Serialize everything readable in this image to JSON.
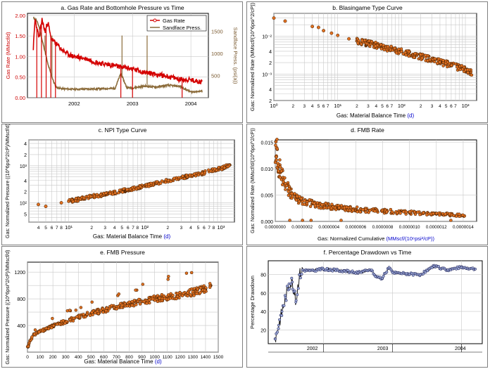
{
  "colors": {
    "gas_rate": "#d40000",
    "sandface": "#8b6b3a",
    "points_fill": "#e07020",
    "points_stroke": "#3a1a00",
    "pct_line": "#1a1a1a",
    "pct_fill": "#9aa8d8",
    "blue_label": "#0000cc",
    "grid": "#c8c8c8"
  },
  "chart_data": [
    {
      "id": "a",
      "type": "line",
      "title": "a. Gas Rate and Bottomhole Pressure vs Time",
      "ylabel": "Gas Rate (MMscf/d)",
      "ylabel_units": "(MMscf/d)",
      "y2label": "Sandface Press. (psi(a))",
      "yticks": [
        "0.00",
        "0.50",
        "1.00",
        "1.50",
        "2.00"
      ],
      "y2ticks": [
        "500",
        "1000",
        "1500"
      ],
      "xticks": [
        "2002",
        "2003",
        "2004"
      ],
      "ylim": [
        0,
        2.05
      ],
      "y2lim": [
        0,
        1900
      ],
      "xlim": [
        2001.2,
        2004.3
      ],
      "legend": [
        "Gas Rate",
        "Sandface Press."
      ],
      "legend_position": "top-right",
      "series": [
        {
          "name": "Gas Rate",
          "x": [
            2001.3,
            2001.33,
            2001.36,
            2001.4,
            2001.45,
            2001.5,
            2001.55,
            2001.6,
            2001.7,
            2001.8,
            2001.9,
            2002.0,
            2002.2,
            2002.4,
            2002.6,
            2002.8,
            2003.0,
            2003.2,
            2003.4,
            2003.6,
            2003.8,
            2004.0,
            2004.2
          ],
          "values": [
            1.2,
            1.9,
            1.7,
            1.45,
            1.9,
            1.6,
            1.85,
            1.45,
            1.3,
            1.15,
            1.05,
            1.0,
            0.95,
            0.85,
            0.8,
            0.75,
            0.7,
            0.62,
            0.57,
            0.52,
            0.45,
            0.43,
            0.38
          ]
        },
        {
          "name": "Sandface Press.",
          "x": [
            2001.3,
            2001.35,
            2001.4,
            2001.45,
            2001.5,
            2001.55,
            2001.6,
            2001.65,
            2001.7,
            2001.8,
            2002.0,
            2002.4,
            2002.7,
            2002.8,
            2002.9,
            2003.0,
            2003.2,
            2003.4,
            2003.6,
            2003.8,
            2004.0,
            2004.2
          ],
          "values": [
            1800,
            1750,
            1600,
            1300,
            1050,
            750,
            550,
            350,
            230,
            200,
            190,
            200,
            210,
            550,
            230,
            220,
            260,
            240,
            280,
            260,
            130,
            150
          ]
        }
      ]
    },
    {
      "id": "b",
      "type": "scatter",
      "title": "b. Blasingame Type Curve",
      "ylabel": "Gas: Normalized Rate (MMscf/(10^6psi^2/cP))",
      "xlabel": "Gas: Material Balance Time (d)",
      "xlabel_main": "Gas: Material Balance Time",
      "xlabel_units": "(d)",
      "xscale": "log",
      "yscale": "log",
      "xlim": [
        1,
        1500
      ],
      "ylim": [
        0.0002,
        0.04
      ],
      "x_major_ticks": [
        "10⁰",
        "10¹",
        "10²",
        "10³"
      ],
      "x_minor_ticks": [
        "2",
        "3",
        "4",
        "5",
        "6",
        "7",
        "2",
        "3",
        "4",
        "5",
        "6",
        "7",
        "2",
        "3",
        "4",
        "5",
        "6",
        "7",
        "2"
      ],
      "y_tick_labels": [
        "10⁻²",
        "4",
        "2",
        "10⁻³",
        "4",
        "2"
      ],
      "x": [
        1.0,
        1.5,
        4,
        5,
        6,
        8,
        10,
        15,
        20,
        30,
        50,
        80,
        100,
        150,
        200,
        300,
        400,
        500,
        600,
        800,
        1000,
        1200
      ],
      "values": [
        0.03,
        0.025,
        0.018,
        0.017,
        0.014,
        0.012,
        0.0105,
        0.0085,
        0.0075,
        0.0065,
        0.0052,
        0.0043,
        0.004,
        0.0033,
        0.0029,
        0.0024,
        0.0021,
        0.0019,
        0.0017,
        0.0015,
        0.0013,
        0.0011
      ]
    },
    {
      "id": "c",
      "type": "scatter",
      "title": "c. NPI Type Curve",
      "ylabel": "Gas: Normalized Pressure ((10^6psi^2/cP)/MMscf/d)",
      "xlabel": "Gas: Material Balance Time (d)",
      "xlabel_main": "Gas: Material Balance Time",
      "xlabel_units": "(d)",
      "xscale": "log",
      "yscale": "log",
      "xlim": [
        3,
        1500
      ],
      "ylim": [
        30,
        5000
      ],
      "x_major_ticks": [
        "10¹",
        "10²",
        "10³"
      ],
      "x_minor_ticks": [
        "4",
        "5",
        "6",
        "7",
        "8",
        "2",
        "3",
        "4",
        "5",
        "6",
        "7",
        "8",
        "2",
        "3",
        "4",
        "5",
        "6",
        "7",
        "8"
      ],
      "y_tick_labels": [
        "4",
        "2",
        "10³",
        "4",
        "2",
        "10²",
        "5"
      ],
      "x": [
        4,
        5,
        8,
        10,
        15,
        20,
        30,
        50,
        80,
        100,
        150,
        200,
        300,
        500,
        800,
        1000,
        1300
      ],
      "values": [
        90,
        80,
        100,
        110,
        130,
        150,
        170,
        210,
        260,
        290,
        350,
        400,
        480,
        600,
        760,
        850,
        1050
      ]
    },
    {
      "id": "d",
      "type": "scatter",
      "title": "d. FMB Rate",
      "ylabel": "Gas: Normalized Rate (MMscf/d/(10^6psi^2/cP))",
      "xlabel": "Gas: Normalized Cumulative (MMscf/(10^6psi^2/cP))",
      "xlabel_main": "Gas: Normalized Cumulative",
      "xlabel_units": "(MMscf/(10⁶psi²/cP))",
      "xlim": [
        0,
        1.5e-06
      ],
      "ylim": [
        0,
        0.0155
      ],
      "xticks": [
        "0.0000000",
        "0.0000002",
        "0.0000004",
        "0.0000006",
        "0.0000008",
        "0.0000010",
        "0.0000012",
        "0.0000014"
      ],
      "yticks": [
        "0.000",
        "0.005",
        "0.010",
        "0.015"
      ],
      "x": [
        1e-08,
        2e-08,
        4e-08,
        6e-08,
        8e-08,
        1e-07,
        1.5e-07,
        2e-07,
        3e-07,
        4e-07,
        5e-07,
        6e-07,
        7e-07,
        8e-07,
        9e-07,
        1e-06,
        1.1e-06,
        1.2e-06,
        1.3e-06,
        1.4e-06
      ],
      "values": [
        0.014,
        0.011,
        0.0095,
        0.008,
        0.007,
        0.006,
        0.0045,
        0.0038,
        0.0032,
        0.0028,
        0.0025,
        0.0023,
        0.0021,
        0.002,
        0.0018,
        0.0017,
        0.0016,
        0.0014,
        0.0013,
        0.0011
      ]
    },
    {
      "id": "e",
      "type": "scatter",
      "title": "e. FMB Pressure",
      "ylabel": "Gas: Normalized Pressure ((10^6psi^2/cP)/MMscf/d)",
      "xlabel": "Gas: Material Balance Time (d)",
      "xlabel_main": "Gas: Material Balance Time",
      "xlabel_units": "(d)",
      "xlim": [
        0,
        1500
      ],
      "ylim": [
        0,
        1350
      ],
      "xticks": [
        "0",
        "100",
        "200",
        "300",
        "400",
        "500",
        "600",
        "700",
        "800",
        "900",
        "1000",
        "1100",
        "1200",
        "1300",
        "1400",
        "1500"
      ],
      "yticks": [
        "400",
        "800",
        "1200"
      ],
      "x": [
        5,
        20,
        50,
        100,
        150,
        200,
        300,
        400,
        500,
        600,
        700,
        800,
        900,
        1000,
        1100,
        1200,
        1300,
        1400,
        1440
      ],
      "values": [
        80,
        170,
        260,
        310,
        350,
        390,
        460,
        520,
        580,
        630,
        680,
        720,
        760,
        800,
        830,
        860,
        900,
        950,
        1000
      ]
    },
    {
      "id": "f",
      "type": "line",
      "title": "f. Percentage Drawdown vs Time",
      "ylabel": "Percentage Drawdown",
      "xlim": [
        2001.2,
        2004.3
      ],
      "ylim": [
        5,
        95
      ],
      "xticks": [
        "2002",
        "2003",
        "2004"
      ],
      "yticks": [
        "20",
        "40",
        "60",
        "80"
      ],
      "x": [
        2001.3,
        2001.35,
        2001.4,
        2001.45,
        2001.5,
        2001.55,
        2001.6,
        2001.65,
        2001.7,
        2001.8,
        2002.0,
        2002.3,
        2002.5,
        2002.7,
        2002.75,
        2002.85,
        2002.95,
        2003.0,
        2003.2,
        2003.4,
        2003.6,
        2003.8,
        2004.0,
        2004.2
      ],
      "values": [
        10,
        25,
        40,
        55,
        70,
        72,
        50,
        80,
        85,
        84,
        86,
        84,
        82,
        85,
        78,
        76,
        88,
        82,
        81,
        80,
        89,
        85,
        88,
        86
      ]
    }
  ]
}
